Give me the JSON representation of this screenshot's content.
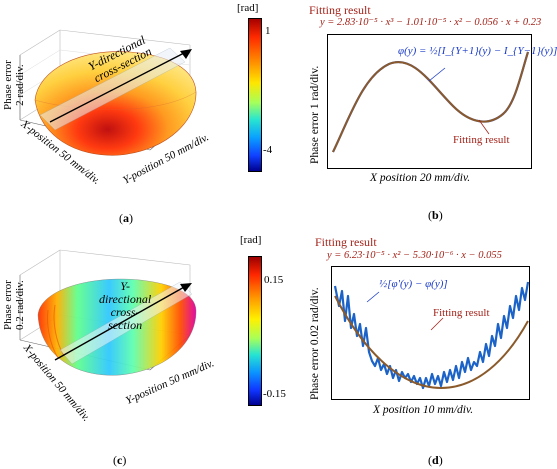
{
  "panel_a": {
    "letter": "a",
    "zlabel_1": "Phase error",
    "zlabel_2": "2 rad/div.",
    "xlabel": "X-position 50 mm/div.",
    "ylabel": "Y-position 50 mm/div.",
    "cross_section_1": "Y-directional",
    "cross_section_2": "cross-section",
    "colorbar_unit": "[rad]",
    "colorbar_max": "1",
    "colorbar_min": "-4"
  },
  "panel_b": {
    "letter": "b",
    "fit_title": "Fitting result",
    "fit_equation": "y = 2.83·10⁻⁵ · x³ − 1.01·10⁻⁵ · x² − 0.056 · x + 0.23",
    "phi_formula": "φ(y) = ½[I_{Y+1}(y) − I_{Y−1}(y)]",
    "fit_label": "Fitting result",
    "ylabel": "Phase error 1 rad/div.",
    "xlabel": "X position 20 mm/div."
  },
  "panel_c": {
    "letter": "c",
    "zlabel_1": "Phase error",
    "zlabel_2": "0.2 rad/div.",
    "xlabel": "X-position 50 mm/div.",
    "ylabel": "Y-position 50 mm/div.",
    "cross_section_1": "Y-",
    "cross_section_2": "directional",
    "cross_section_3": "cross-",
    "cross_section_4": "section",
    "colorbar_unit": "[rad]",
    "colorbar_max": "0.15",
    "colorbar_min": "-0.15"
  },
  "panel_d": {
    "letter": "d",
    "fit_title": "Fitting result",
    "fit_equation": "y = 6.23·10⁻⁵ · x² − 5.30·10⁻⁶ · x − 0.055",
    "phi_formula": "½[φ'(y) − φ(y)]",
    "fit_label": "Fitting result",
    "ylabel": "Phase error 0.02 rad/div.",
    "xlabel": "X position 10 mm/div."
  },
  "colors": {
    "fit_curve": "#8b5a2b",
    "fit_text": "#a4241b",
    "data_curve": "#1c63c8",
    "formula_text": "#1a3bc8"
  }
}
